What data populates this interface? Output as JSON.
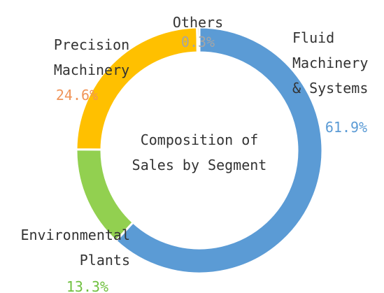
{
  "chart_data": {
    "type": "pie",
    "donut": true,
    "title": "Composition of Sales by Segment",
    "categories": [
      "Fluid Machinery & Systems",
      "Environmental Plants",
      "Precision Machinery",
      "Others"
    ],
    "values": [
      61.9,
      13.3,
      24.6,
      0.3
    ],
    "value_labels": [
      "61.9%",
      "13.3%",
      "24.6%",
      "0.3%"
    ],
    "colors": [
      "#5b9bd5",
      "#92d050",
      "#ffc000",
      "#a5a5a5"
    ],
    "label_colors": [
      "#5b9bd5",
      "#70c040",
      "#f0955a",
      "#a5a5a5"
    ]
  }
}
